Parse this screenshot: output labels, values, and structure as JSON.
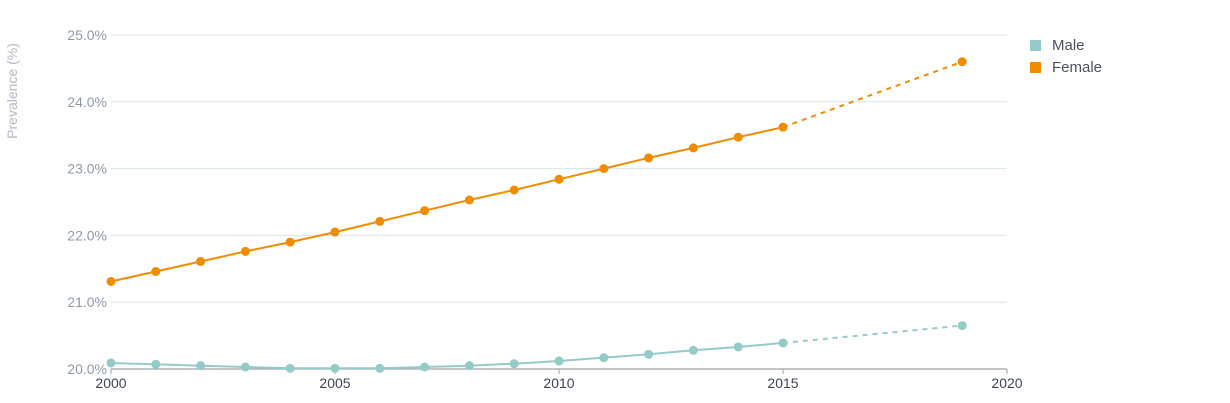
{
  "chart_data": {
    "type": "line",
    "title": "",
    "xlabel": "",
    "ylabel": "Prevalence (%)",
    "xlim": [
      2000,
      2020
    ],
    "ylim": [
      20.0,
      25.0
    ],
    "x_ticks": [
      "2000",
      "2005",
      "2010",
      "2015",
      "2020"
    ],
    "y_ticks": [
      "20.0%",
      "21.0%",
      "22.0%",
      "23.0%",
      "24.0%",
      "25.0%"
    ],
    "grid": true,
    "legend_position": "top-right",
    "series": [
      {
        "name": "Male",
        "color": "#94cbc9",
        "x": [
          2000,
          2001,
          2002,
          2003,
          2004,
          2005,
          2006,
          2007,
          2008,
          2009,
          2010,
          2011,
          2012,
          2013,
          2014,
          2015
        ],
        "values": [
          20.09,
          20.07,
          20.05,
          20.03,
          20.01,
          20.01,
          20.01,
          20.03,
          20.05,
          20.08,
          20.12,
          20.17,
          20.22,
          20.28,
          20.33,
          20.39
        ],
        "projection": {
          "x": [
            2015,
            2019
          ],
          "values": [
            20.39,
            20.65
          ]
        }
      },
      {
        "name": "Female",
        "color": "#ef8c00",
        "x": [
          2000,
          2001,
          2002,
          2003,
          2004,
          2005,
          2006,
          2007,
          2008,
          2009,
          2010,
          2011,
          2012,
          2013,
          2014,
          2015
        ],
        "values": [
          21.31,
          21.46,
          21.61,
          21.76,
          21.9,
          22.05,
          22.21,
          22.37,
          22.53,
          22.68,
          22.84,
          23.0,
          23.16,
          23.31,
          23.47,
          23.62
        ],
        "projection": {
          "x": [
            2015,
            2019
          ],
          "values": [
            23.62,
            24.6
          ]
        }
      }
    ]
  }
}
